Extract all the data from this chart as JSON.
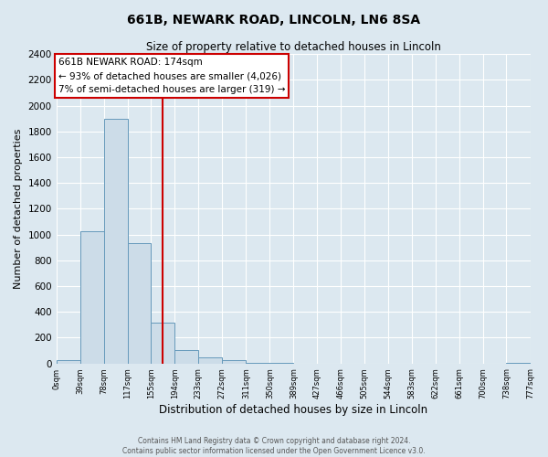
{
  "title": "661B, NEWARK ROAD, LINCOLN, LN6 8SA",
  "subtitle": "Size of property relative to detached houses in Lincoln",
  "xlabel": "Distribution of detached houses by size in Lincoln",
  "ylabel": "Number of detached properties",
  "bar_color": "#ccdce8",
  "bar_edge_color": "#6699bb",
  "background_color": "#dce8f0",
  "grid_color": "#ffffff",
  "annotation_box_color": "#ffffff",
  "annotation_box_edge": "#cc0000",
  "property_line_color": "#cc0000",
  "property_line_x": 174,
  "annotation_title": "661B NEWARK ROAD: 174sqm",
  "annotation_line1": "← 93% of detached houses are smaller (4,026)",
  "annotation_line2": "7% of semi-detached houses are larger (319) →",
  "footer_line1": "Contains HM Land Registry data © Crown copyright and database right 2024.",
  "footer_line2": "Contains public sector information licensed under the Open Government Licence v3.0.",
  "bin_edges": [
    0,
    39,
    78,
    117,
    155,
    194,
    233,
    272,
    311,
    350,
    389,
    427,
    466,
    505,
    544,
    583,
    622,
    661,
    700,
    738,
    777
  ],
  "bin_counts": [
    25,
    1025,
    1900,
    930,
    315,
    105,
    50,
    25,
    5,
    5,
    0,
    0,
    0,
    0,
    0,
    0,
    0,
    0,
    0,
    5
  ],
  "ylim": [
    0,
    2400
  ],
  "yticks": [
    0,
    200,
    400,
    600,
    800,
    1000,
    1200,
    1400,
    1600,
    1800,
    2000,
    2200,
    2400
  ],
  "xtick_labels": [
    "0sqm",
    "39sqm",
    "78sqm",
    "117sqm",
    "155sqm",
    "194sqm",
    "233sqm",
    "272sqm",
    "311sqm",
    "350sqm",
    "389sqm",
    "427sqm",
    "466sqm",
    "505sqm",
    "544sqm",
    "583sqm",
    "622sqm",
    "661sqm",
    "700sqm",
    "738sqm",
    "777sqm"
  ]
}
